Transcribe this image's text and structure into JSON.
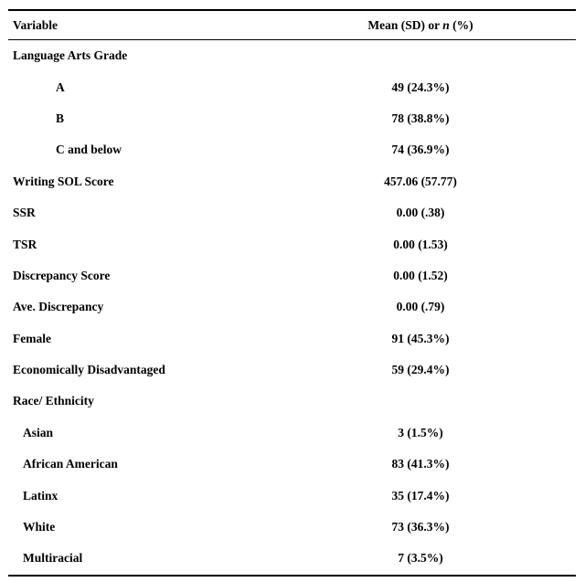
{
  "table": {
    "columns": {
      "variable": "Variable"
    },
    "value_header": {
      "prefix": "Mean (SD) or ",
      "italic": "n",
      "suffix": " (%)"
    },
    "rows": [
      {
        "label": "Language Arts Grade",
        "value": "",
        "indent": 0
      },
      {
        "label": "A",
        "value": "49 (24.3%)",
        "indent": 2
      },
      {
        "label": "B",
        "value": "78 (38.8%)",
        "indent": 2
      },
      {
        "label": "C and below",
        "value": "74 (36.9%)",
        "indent": 2
      },
      {
        "label": "Writing SOL Score",
        "value": "457.06 (57.77)",
        "indent": 0
      },
      {
        "label": "SSR",
        "value": "0.00 (.38)",
        "indent": 0
      },
      {
        "label": "TSR",
        "value": "0.00 (1.53)",
        "indent": 0
      },
      {
        "label": "Discrepancy Score",
        "value": "0.00 (1.52)",
        "indent": 0
      },
      {
        "label": "Ave. Discrepancy",
        "value": "0.00 (.79)",
        "indent": 0
      },
      {
        "label": "Female",
        "value": "91 (45.3%)",
        "indent": 0
      },
      {
        "label": "Economically Disadvantaged",
        "value": "59 (29.4%)",
        "indent": 0
      },
      {
        "label": "Race/ Ethnicity",
        "value": "",
        "indent": 0
      },
      {
        "label": "Asian",
        "value": "3 (1.5%)",
        "indent": 1
      },
      {
        "label": "African American",
        "value": "83 (41.3%)",
        "indent": 1
      },
      {
        "label": "Latinx",
        "value": "35 (17.4%)",
        "indent": 1
      },
      {
        "label": "White",
        "value": "73 (36.3%)",
        "indent": 1
      },
      {
        "label": "Multiracial",
        "value": "7 (3.5%)",
        "indent": 1
      }
    ]
  }
}
